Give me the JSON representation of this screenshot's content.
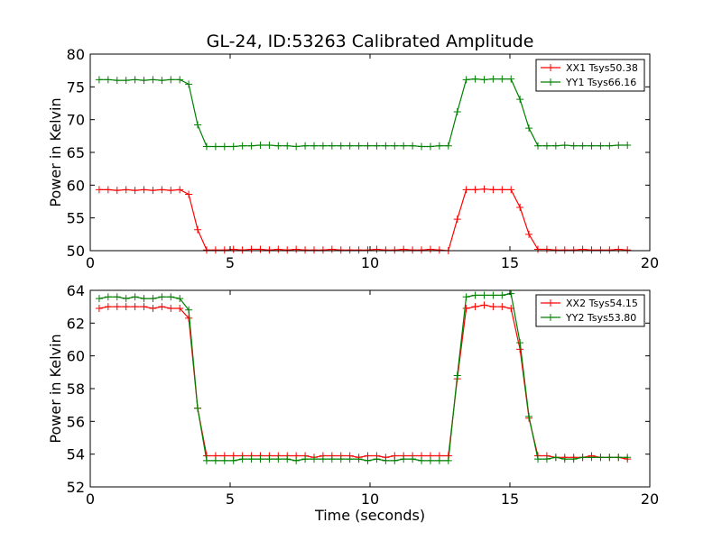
{
  "chart_data": [
    {
      "type": "line",
      "title": "GL-24, ID:53263 Calibrated Amplitude",
      "xlabel": "",
      "ylabel": "Power in Kelvin",
      "xlim": [
        0,
        20
      ],
      "ylim": [
        50,
        80
      ],
      "x_ticks": [
        0,
        5,
        10,
        15,
        20
      ],
      "y_ticks": [
        50,
        55,
        60,
        65,
        70,
        75,
        80
      ],
      "grid": false,
      "legend_position": "top-right",
      "x": [
        0.32,
        0.64,
        0.96,
        1.28,
        1.6,
        1.92,
        2.24,
        2.56,
        2.88,
        3.2,
        3.52,
        3.84,
        4.16,
        4.48,
        4.8,
        5.12,
        5.44,
        5.76,
        6.08,
        6.4,
        6.72,
        7.04,
        7.36,
        7.68,
        8.0,
        8.32,
        8.64,
        8.96,
        9.28,
        9.6,
        9.92,
        10.24,
        10.56,
        10.88,
        11.2,
        11.52,
        11.84,
        12.16,
        12.48,
        12.8,
        13.12,
        13.44,
        13.76,
        14.08,
        14.4,
        14.72,
        15.04,
        15.36,
        15.68,
        16.0,
        16.32,
        16.64,
        16.96,
        17.28,
        17.6,
        17.92,
        18.24,
        18.56,
        18.88,
        19.2
      ],
      "series": [
        {
          "name": "XX1 Tsys50.38",
          "color": "#ff0000",
          "values": [
            59.3,
            59.3,
            59.2,
            59.3,
            59.2,
            59.3,
            59.2,
            59.3,
            59.2,
            59.3,
            58.6,
            53.2,
            50.1,
            50.1,
            50.1,
            50.2,
            50.1,
            50.2,
            50.2,
            50.1,
            50.2,
            50.1,
            50.2,
            50.1,
            50.1,
            50.1,
            50.2,
            50.1,
            50.1,
            50.1,
            50.1,
            50.2,
            50.1,
            50.1,
            50.2,
            50.1,
            50.1,
            50.2,
            50.1,
            50.0,
            54.8,
            59.3,
            59.3,
            59.4,
            59.3,
            59.3,
            59.3,
            56.6,
            52.5,
            50.2,
            50.2,
            50.1,
            50.1,
            50.1,
            50.2,
            50.1,
            50.1,
            50.1,
            50.2,
            50.1
          ]
        },
        {
          "name": "YY1 Tsys66.16",
          "color": "#008000",
          "values": [
            76.1,
            76.1,
            76.0,
            76.0,
            76.1,
            76.0,
            76.1,
            76.0,
            76.1,
            76.1,
            75.4,
            69.2,
            65.9,
            65.9,
            65.9,
            65.9,
            66.0,
            66.0,
            66.1,
            66.1,
            66.0,
            66.0,
            65.9,
            66.0,
            66.0,
            66.0,
            66.0,
            66.0,
            66.0,
            66.0,
            66.0,
            66.0,
            66.0,
            66.0,
            66.0,
            66.0,
            65.9,
            65.9,
            66.0,
            66.0,
            71.2,
            76.1,
            76.2,
            76.1,
            76.2,
            76.2,
            76.2,
            73.1,
            68.7,
            66.0,
            66.0,
            66.0,
            66.1,
            66.0,
            66.0,
            66.0,
            66.0,
            66.0,
            66.1,
            66.1
          ]
        }
      ]
    },
    {
      "type": "line",
      "title": "",
      "xlabel": "Time (seconds)",
      "ylabel": "Power in Kelvin",
      "xlim": [
        0,
        20
      ],
      "ylim": [
        52,
        64
      ],
      "x_ticks": [
        0,
        5,
        10,
        15,
        20
      ],
      "y_ticks": [
        52,
        54,
        56,
        58,
        60,
        62,
        64
      ],
      "grid": false,
      "legend_position": "top-right",
      "x": [
        0.32,
        0.64,
        0.96,
        1.28,
        1.6,
        1.92,
        2.24,
        2.56,
        2.88,
        3.2,
        3.52,
        3.84,
        4.16,
        4.48,
        4.8,
        5.12,
        5.44,
        5.76,
        6.08,
        6.4,
        6.72,
        7.04,
        7.36,
        7.68,
        8.0,
        8.32,
        8.64,
        8.96,
        9.28,
        9.6,
        9.92,
        10.24,
        10.56,
        10.88,
        11.2,
        11.52,
        11.84,
        12.16,
        12.48,
        12.8,
        13.12,
        13.44,
        13.76,
        14.08,
        14.4,
        14.72,
        15.04,
        15.36,
        15.68,
        16.0,
        16.32,
        16.64,
        16.96,
        17.28,
        17.6,
        17.92,
        18.24,
        18.56,
        18.88,
        19.2
      ],
      "series": [
        {
          "name": "XX2 Tsys54.15",
          "color": "#ff0000",
          "values": [
            62.9,
            63.0,
            63.0,
            63.0,
            63.0,
            63.0,
            62.9,
            63.0,
            62.9,
            62.9,
            62.3,
            56.8,
            53.9,
            53.9,
            53.9,
            53.9,
            53.9,
            53.9,
            53.9,
            53.9,
            53.9,
            53.9,
            53.9,
            53.9,
            53.8,
            53.9,
            53.9,
            53.9,
            53.9,
            53.8,
            53.9,
            53.9,
            53.8,
            53.9,
            53.9,
            53.9,
            53.9,
            53.9,
            53.9,
            53.9,
            58.6,
            62.9,
            63.0,
            63.1,
            63.0,
            63.0,
            62.9,
            60.4,
            56.2,
            53.9,
            53.9,
            53.8,
            53.8,
            53.8,
            53.8,
            53.9,
            53.8,
            53.8,
            53.8,
            53.7
          ]
        },
        {
          "name": "YY2 Tsys53.80",
          "color": "#008000",
          "values": [
            63.5,
            63.6,
            63.6,
            63.5,
            63.6,
            63.5,
            63.5,
            63.6,
            63.6,
            63.5,
            62.8,
            56.8,
            53.6,
            53.6,
            53.6,
            53.6,
            53.7,
            53.7,
            53.7,
            53.7,
            53.7,
            53.7,
            53.6,
            53.7,
            53.7,
            53.7,
            53.7,
            53.7,
            53.7,
            53.7,
            53.6,
            53.7,
            53.6,
            53.6,
            53.7,
            53.7,
            53.6,
            53.6,
            53.6,
            53.6,
            58.8,
            63.6,
            63.7,
            63.7,
            63.7,
            63.7,
            63.8,
            60.8,
            56.3,
            53.7,
            53.7,
            53.8,
            53.7,
            53.7,
            53.8,
            53.8,
            53.8,
            53.8,
            53.8,
            53.8
          ]
        }
      ]
    }
  ]
}
